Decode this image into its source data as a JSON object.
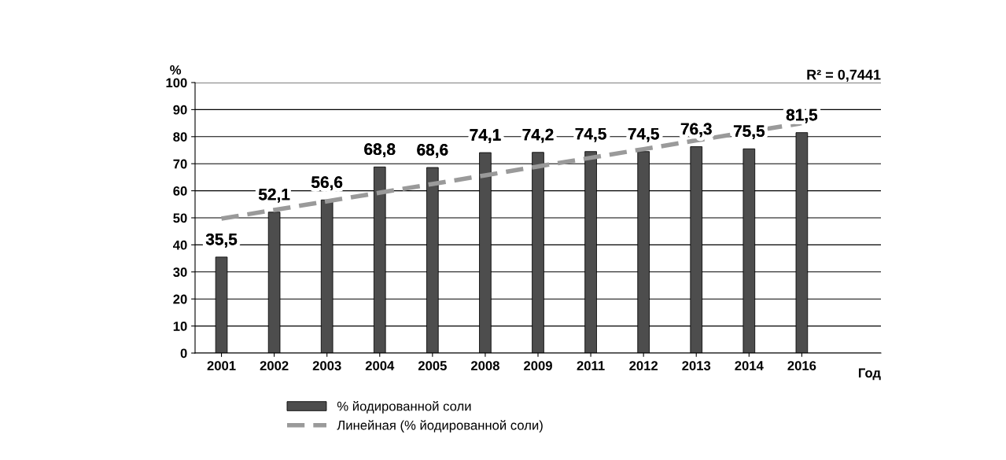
{
  "chart_data": {
    "type": "bar",
    "xlabel": "Год",
    "ylabel": "%",
    "categories": [
      "2001",
      "2002",
      "2003",
      "2004",
      "2005",
      "2008",
      "2009",
      "2011",
      "2012",
      "2013",
      "2014",
      "2016"
    ],
    "series": [
      {
        "name": "% йодированной соли",
        "color": "#4d4d4d",
        "values": [
          35.5,
          52.1,
          56.6,
          68.8,
          68.6,
          74.1,
          74.2,
          74.5,
          74.5,
          76.3,
          75.5,
          81.5
        ],
        "value_labels": [
          "35,5",
          "52,1",
          "56,6",
          "68,8",
          "68,6",
          "74,1",
          "74,2",
          "74,5",
          "74,5",
          "76,3",
          "75,5",
          "81,5"
        ]
      },
      {
        "type": "line",
        "name": "Линейная (% йодированной соли)",
        "color": "#9a9a9a",
        "line_style": "dashed",
        "values": [
          49.7,
          52.9,
          56.1,
          59.3,
          62.5,
          65.7,
          69.0,
          72.2,
          75.4,
          78.6,
          81.8,
          85.0
        ]
      }
    ],
    "ylim": [
      0,
      100
    ],
    "yticks": [
      0,
      10,
      20,
      30,
      40,
      50,
      60,
      70,
      80,
      90,
      100
    ],
    "grid": "y",
    "legend": "bottom",
    "annotations": [
      "R² = 0,7441"
    ]
  }
}
